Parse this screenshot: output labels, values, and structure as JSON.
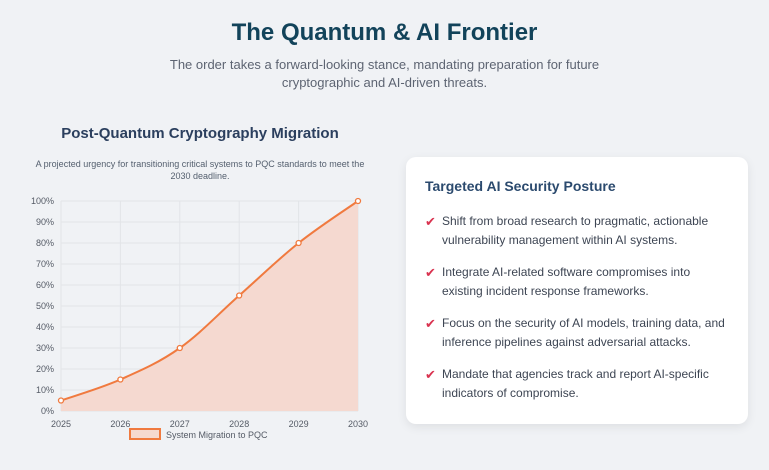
{
  "header": {
    "title": "The Quantum & AI Frontier",
    "subtitle": "The order takes a forward-looking stance, mandating preparation for future cryptographic and AI-driven threats."
  },
  "chart_panel": {
    "title": "Post-Quantum Cryptography Migration",
    "description": "A projected urgency for transitioning critical systems to PQC standards to meet the 2030 deadline."
  },
  "chart_data": {
    "type": "area",
    "title": "",
    "xlabel": "",
    "ylabel": "",
    "categories": [
      "2025",
      "2026",
      "2027",
      "2028",
      "2029",
      "2030"
    ],
    "series": [
      {
        "name": "System Migration to PQC",
        "values": [
          5,
          15,
          30,
          55,
          80,
          100
        ],
        "color": "#f07a3f",
        "fill": "#f5d9d0"
      }
    ],
    "yticks": [
      "0%",
      "10%",
      "20%",
      "30%",
      "40%",
      "50%",
      "60%",
      "70%",
      "80%",
      "90%",
      "100%"
    ],
    "ylim": [
      0,
      100
    ],
    "grid": true,
    "legend": "bottom"
  },
  "card": {
    "title": "Targeted AI Security Posture",
    "check_icon": "✔",
    "items": [
      "Shift from broad research to pragmatic, actionable vulnerability management within AI systems.",
      "Integrate AI-related software compromises into existing incident response frameworks.",
      "Focus on the security of AI models, training data, and inference pipelines against adversarial attacks.",
      "Mandate that agencies track and report AI-specific indicators of compromise."
    ]
  }
}
